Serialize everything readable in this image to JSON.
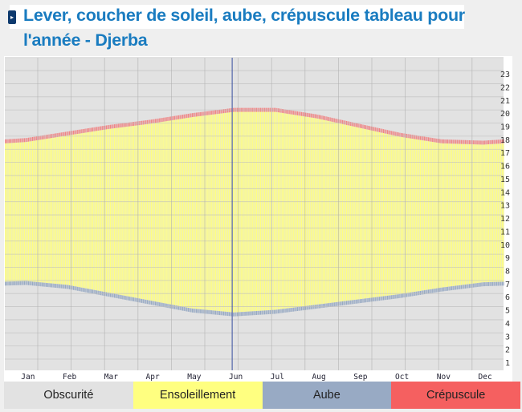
{
  "title": "Lever, coucher de soleil, aube, crépuscule tableau pour l'année - Djerba",
  "chart_data": {
    "type": "area",
    "title": "Lever, coucher de soleil, aube, crépuscule tableau pour l'année - Djerba",
    "categories": [
      "Jan",
      "Feb",
      "Mar",
      "Apr",
      "May",
      "Jun",
      "Jul",
      "Aug",
      "Sep",
      "Oct",
      "Nov",
      "Dec"
    ],
    "y_ticks": [
      1,
      2,
      3,
      4,
      5,
      6,
      7,
      8,
      9,
      10,
      11,
      12,
      13,
      14,
      15,
      16,
      17,
      18,
      19,
      20,
      21,
      22,
      23
    ],
    "ylim": [
      0,
      24
    ],
    "series": [
      {
        "name": "Aube",
        "values": [
          6.9,
          6.6,
          6.0,
          5.4,
          4.8,
          4.5,
          4.7,
          5.1,
          5.5,
          5.9,
          6.4,
          6.8
        ]
      },
      {
        "name": "Ensoleillement",
        "start": [
          7.2,
          6.9,
          6.3,
          5.7,
          5.1,
          4.8,
          5.0,
          5.4,
          5.8,
          6.2,
          6.7,
          7.1
        ],
        "end": [
          17.8,
          18.3,
          18.8,
          19.2,
          19.7,
          20.1,
          20.1,
          19.6,
          18.9,
          18.2,
          17.7,
          17.6
        ]
      },
      {
        "name": "Crépuscule",
        "values": [
          18.1,
          18.6,
          19.1,
          19.5,
          20.0,
          20.4,
          20.4,
          19.9,
          19.2,
          18.5,
          18.0,
          17.9
        ]
      }
    ],
    "current_date_month": 6.2,
    "grid": true,
    "legend": "bottom",
    "colors": {
      "obscurite": "#e2e2e2",
      "ensoleillement": "#ffff80",
      "aube": "#98aac4",
      "crepuscule": "#f56060",
      "current": "#3a4fa0"
    }
  },
  "legend": [
    {
      "label": "Obscurité",
      "color": "#e2e2e2"
    },
    {
      "label": "Ensoleillement",
      "color": "#ffff80"
    },
    {
      "label": "Aube",
      "color": "#98aac4"
    },
    {
      "label": "Crépuscule",
      "color": "#f56060"
    }
  ]
}
